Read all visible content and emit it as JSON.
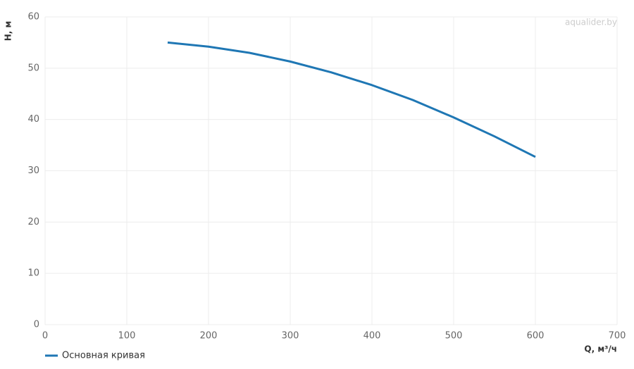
{
  "chart_data": {
    "type": "line",
    "watermark": "aqualider.by",
    "x_label": "Q, м³/ч",
    "y_label": "H, м",
    "x": [
      150,
      200,
      250,
      300,
      350,
      400,
      450,
      500,
      550,
      600
    ],
    "series": [
      {
        "name": "Основная кривая",
        "color": "#1f77b4",
        "values": [
          55.0,
          54.2,
          53.0,
          51.3,
          49.2,
          46.7,
          43.8,
          40.4,
          36.7,
          32.7
        ]
      }
    ],
    "xlim": [
      0,
      700
    ],
    "xticks": [
      0,
      100,
      200,
      300,
      400,
      500,
      600,
      700
    ],
    "ylim": [
      0,
      60
    ],
    "yticks": [
      0,
      10,
      20,
      30,
      40,
      50,
      60
    ],
    "grid": true,
    "legend": "bottom-left"
  }
}
